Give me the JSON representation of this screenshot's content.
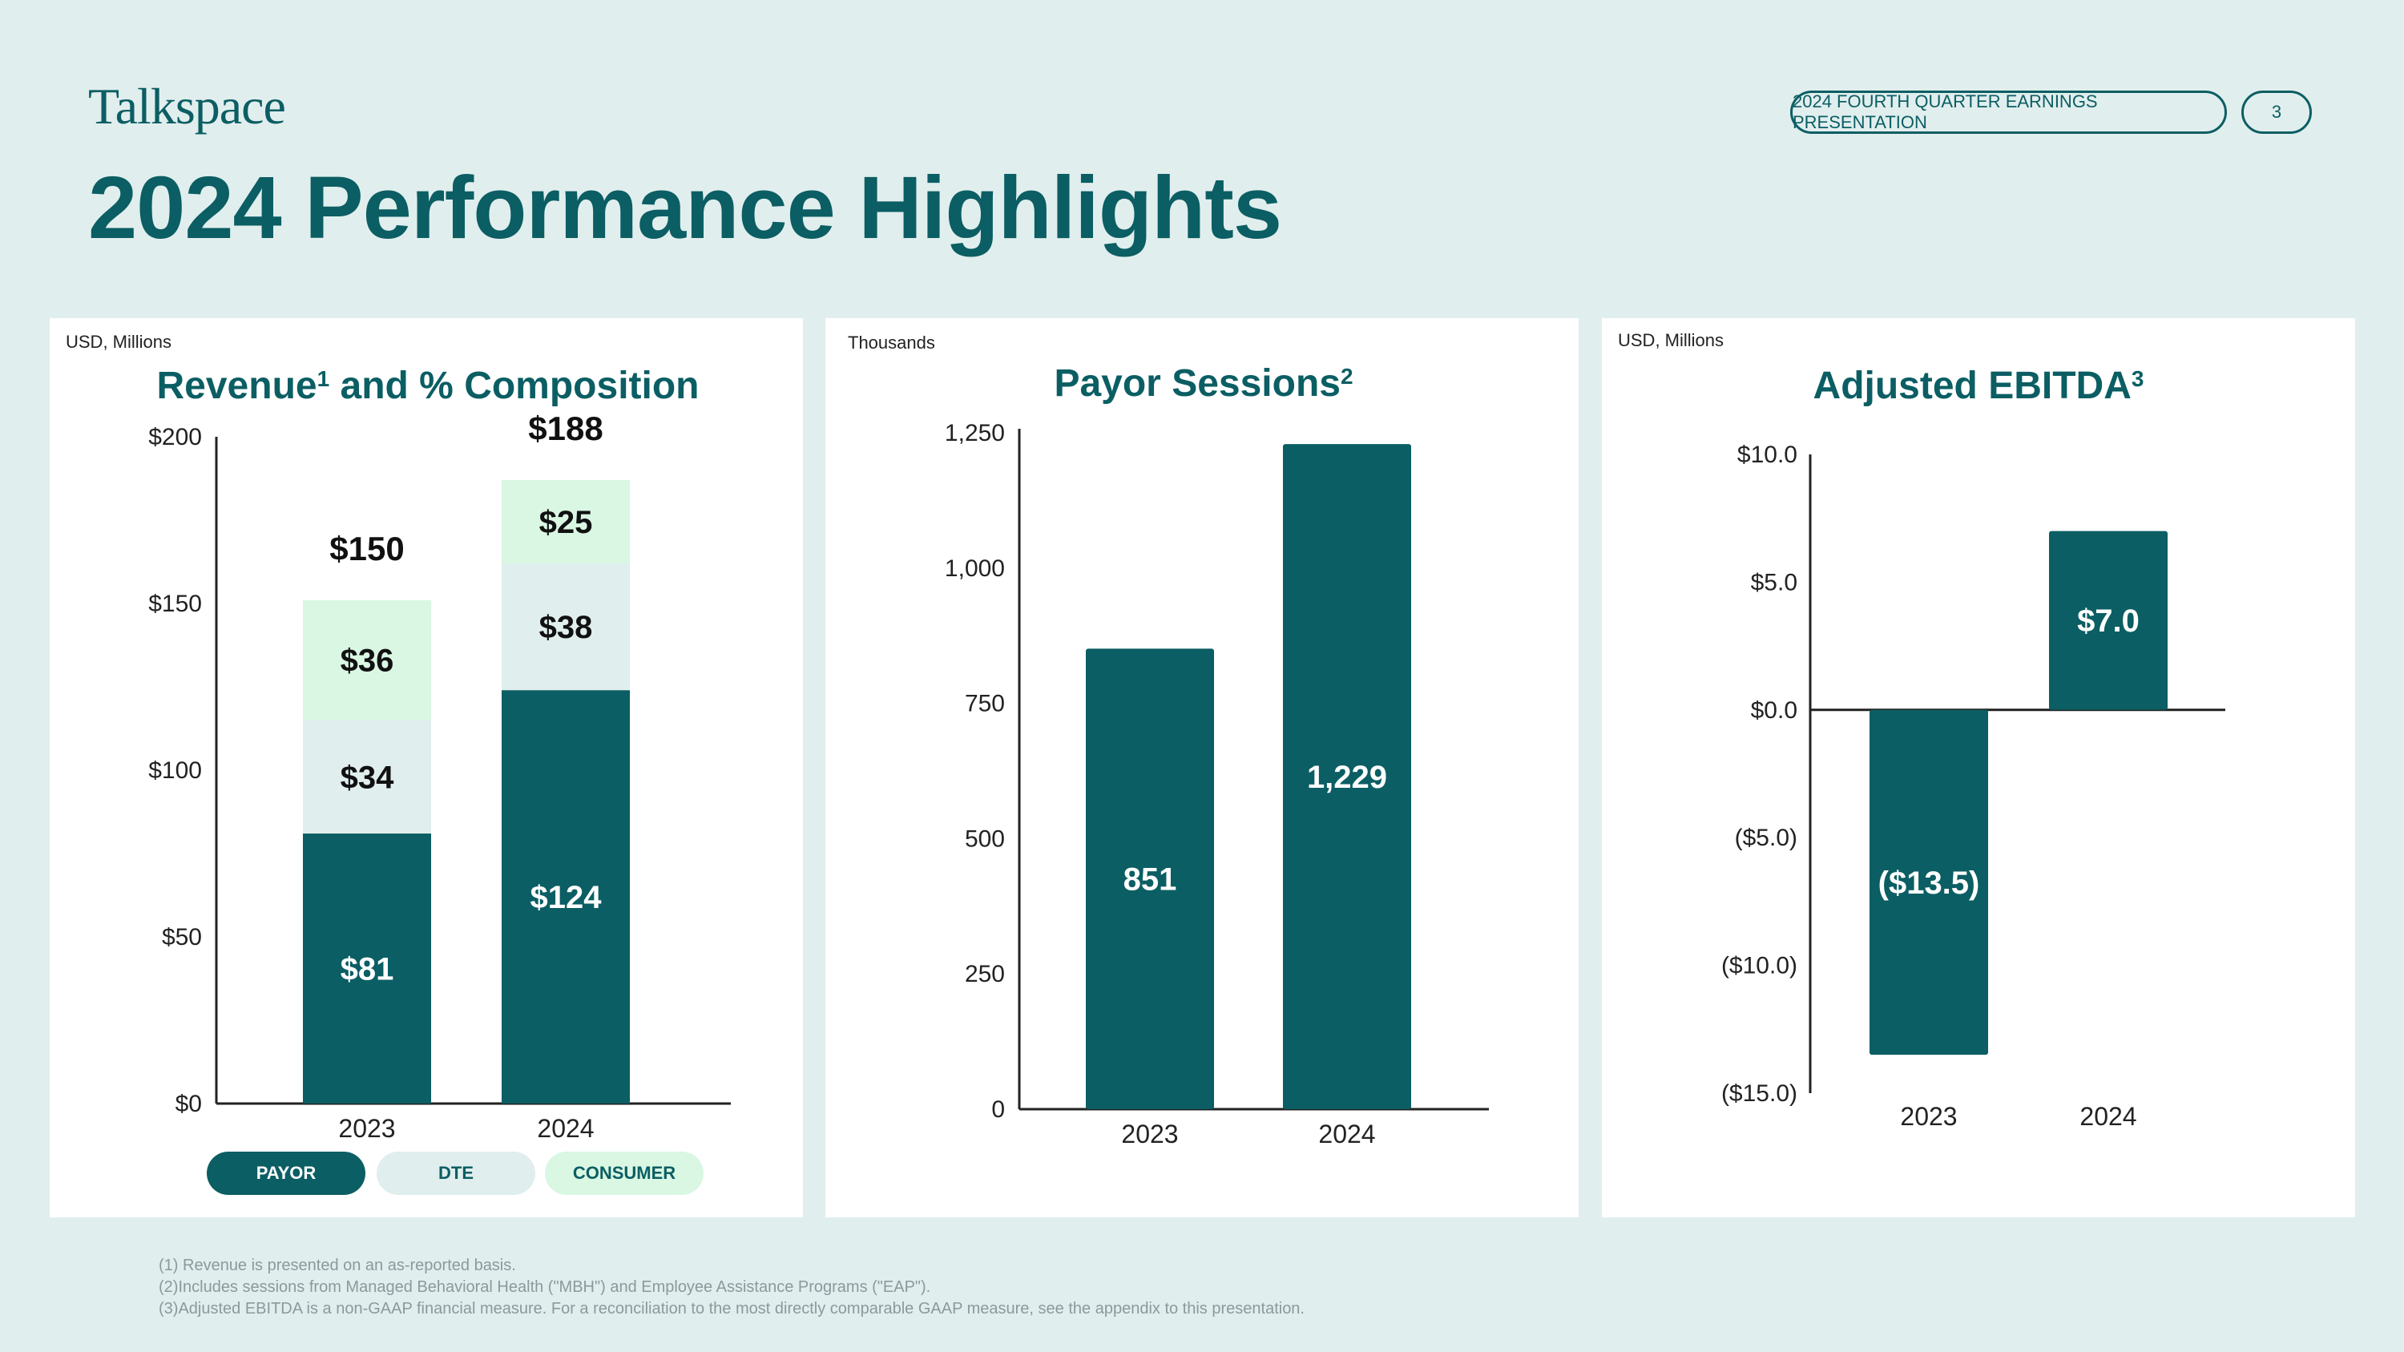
{
  "header": {
    "logo_text": "Talkspace",
    "title": "2024 Performance Highlights",
    "deck_label": "2024 FOURTH QUARTER EARNINGS PRESENTATION",
    "page_number": "3"
  },
  "colors": {
    "background": "#e1eeee",
    "brand": "#0b5e63",
    "dte": "#e0eeee",
    "consumer": "#d9f7e3",
    "panel": "#ffffff"
  },
  "chart_data": [
    {
      "type": "bar",
      "stacked": true,
      "unit_note": "USD, Millions",
      "title": "Revenue",
      "title_sup": "1",
      "title_rest": " and % Composition",
      "categories": [
        "2023",
        "2024"
      ],
      "series": [
        {
          "name": "PAYOR",
          "values": [
            81,
            124
          ],
          "labels": [
            "$81",
            "$124"
          ],
          "color": "#0b5e63"
        },
        {
          "name": "DTE",
          "values": [
            34,
            38
          ],
          "labels": [
            "$34",
            "$38"
          ],
          "color": "#e0eeee"
        },
        {
          "name": "CONSUMER",
          "values": [
            36,
            25
          ],
          "labels": [
            "$36",
            "$25"
          ],
          "color": "#d9f7e3"
        }
      ],
      "totals": [
        "$150",
        "$188"
      ],
      "ylim": [
        0,
        200
      ],
      "yticks": [
        0,
        50,
        100,
        150,
        200
      ],
      "ytick_labels": [
        "$0",
        "$50",
        "$100",
        "$150",
        "$200"
      ],
      "legend": [
        "PAYOR",
        "DTE",
        "CONSUMER"
      ]
    },
    {
      "type": "bar",
      "unit_note": "Thousands",
      "title": "Payor Sessions",
      "title_sup": "2",
      "categories": [
        "2023",
        "2024"
      ],
      "values": [
        851,
        1229
      ],
      "labels": [
        "851",
        "1,229"
      ],
      "ylim": [
        0,
        1250
      ],
      "yticks": [
        0,
        250,
        500,
        750,
        1000,
        1250
      ],
      "ytick_labels": [
        "0",
        "250",
        "500",
        "750",
        "1,000",
        "1,250"
      ]
    },
    {
      "type": "bar",
      "unit_note": "USD, Millions",
      "title": "Adjusted EBITDA",
      "title_sup": "3",
      "categories": [
        "2023",
        "2024"
      ],
      "values": [
        -13.5,
        7.0
      ],
      "labels": [
        "($13.5)",
        "$7.0"
      ],
      "ylim": [
        -15,
        10
      ],
      "yticks": [
        -15,
        -10,
        -5,
        0,
        5,
        10
      ],
      "ytick_labels": [
        "($15.0)",
        "($10.0)",
        "($5.0)",
        "$0.0",
        "$5.0",
        "$10.0"
      ]
    }
  ],
  "footnotes": [
    "(1) Revenue is presented on an as-reported basis.",
    "(2)Includes sessions from Managed Behavioral Health (\"MBH\") and Employee Assistance Programs (\"EAP\").",
    "(3)Adjusted EBITDA is a non-GAAP financial measure. For a reconciliation to the most directly comparable GAAP measure, see the appendix to this presentation."
  ]
}
